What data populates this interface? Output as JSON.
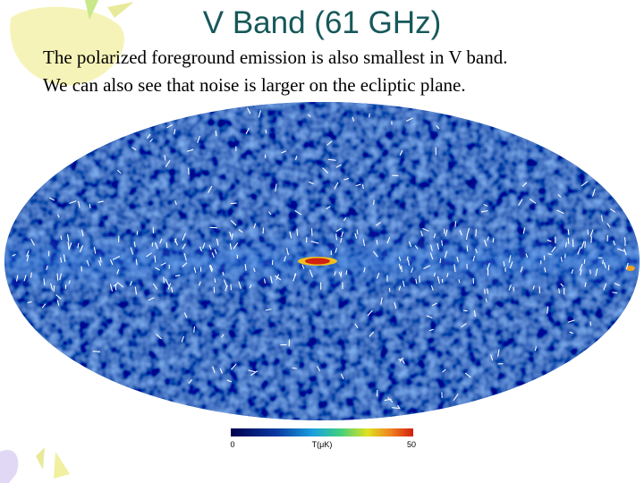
{
  "slide": {
    "title": "V Band (61 GHz)",
    "body": [
      "The polarized foreground emission is also smallest in V band.",
      "We can also see that noise is larger on the ecliptic plane."
    ],
    "colorbar": {
      "min": 0,
      "unit": "T(μK)",
      "max": 50
    }
  }
}
